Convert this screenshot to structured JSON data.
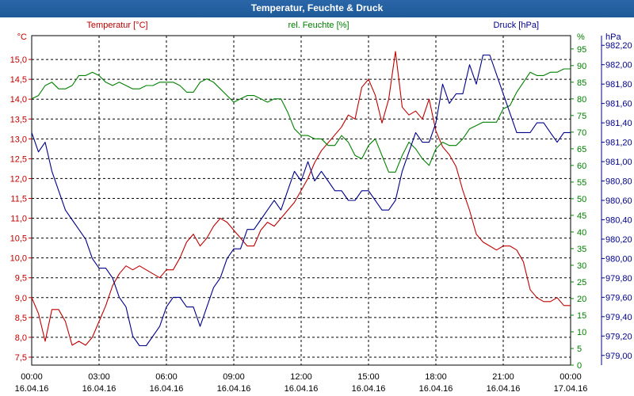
{
  "window": {
    "title": "Temperatur, Feuchte & Druck"
  },
  "colors": {
    "temperature": "#c00000",
    "humidity": "#008000",
    "pressure": "#00008b",
    "titlebar": "#1f5a99"
  },
  "chart_data": {
    "type": "line",
    "title": "Temperatur, Feuchte & Druck",
    "grid": true,
    "x_ticks": [
      {
        "time": "00:00",
        "date": "16.04.16"
      },
      {
        "time": "03:00",
        "date": "16.04.16"
      },
      {
        "time": "06:00",
        "date": "16.04.16"
      },
      {
        "time": "09:00",
        "date": "16.04.16"
      },
      {
        "time": "12:00",
        "date": "16.04.16"
      },
      {
        "time": "15:00",
        "date": "16.04.16"
      },
      {
        "time": "18:00",
        "date": "16.04.16"
      },
      {
        "time": "21:00",
        "date": "16.04.16"
      },
      {
        "time": "00:00",
        "date": "17.04.16"
      }
    ],
    "x_range_hours": [
      0,
      24
    ],
    "axes": {
      "temperature": {
        "label": "Temperatur [°C]",
        "unit": "°C",
        "range": [
          7.3,
          15.6
        ],
        "ticks": [
          "7,5",
          "8,0",
          "8,5",
          "9,0",
          "9,5",
          "10,0",
          "10,5",
          "11,0",
          "11,5",
          "12,0",
          "12,5",
          "13,0",
          "13,5",
          "14,0",
          "14,5",
          "15,0"
        ]
      },
      "humidity": {
        "label": "rel. Feuchte [%]",
        "unit": "%",
        "range": [
          0,
          99
        ],
        "ticks": [
          "0",
          "5",
          "10",
          "15",
          "20",
          "25",
          "30",
          "35",
          "40",
          "45",
          "50",
          "55",
          "60",
          "65",
          "70",
          "75",
          "80",
          "85",
          "90",
          "95"
        ]
      },
      "pressure": {
        "label": "Druck [hPa]",
        "unit": "hPa",
        "range": [
          978.9,
          982.3
        ],
        "ticks": [
          "979,00",
          "979,20",
          "979,40",
          "979,60",
          "979,80",
          "980,00",
          "980,20",
          "980,40",
          "980,60",
          "980,80",
          "981,00",
          "981,20",
          "981,40",
          "981,60",
          "981,80",
          "982,00",
          "982,20"
        ]
      }
    },
    "series": [
      {
        "name": "Temperatur [°C]",
        "axis": "temperature",
        "x": [
          0,
          0.3,
          0.6,
          0.9,
          1.2,
          1.5,
          1.8,
          2.1,
          2.4,
          2.7,
          3.0,
          3.3,
          3.6,
          3.9,
          4.2,
          4.5,
          4.8,
          5.1,
          5.4,
          5.7,
          6.0,
          6.3,
          6.6,
          6.9,
          7.2,
          7.5,
          7.8,
          8.1,
          8.4,
          8.7,
          9.0,
          9.3,
          9.6,
          9.9,
          10.2,
          10.5,
          10.8,
          11.1,
          11.4,
          11.7,
          12.0,
          12.3,
          12.6,
          12.9,
          13.2,
          13.5,
          13.8,
          14.1,
          14.4,
          14.7,
          15.0,
          15.3,
          15.6,
          15.9,
          16.2,
          16.5,
          16.8,
          17.1,
          17.4,
          17.7,
          18.0,
          18.3,
          18.6,
          18.9,
          19.2,
          19.5,
          19.8,
          20.1,
          20.4,
          20.7,
          21.0,
          21.3,
          21.6,
          21.9,
          22.2,
          22.5,
          22.8,
          23.1,
          23.4,
          23.7,
          24.0
        ],
        "values": [
          9.0,
          8.6,
          7.9,
          8.7,
          8.7,
          8.4,
          7.8,
          7.9,
          7.8,
          8.0,
          8.4,
          8.8,
          9.3,
          9.6,
          9.8,
          9.7,
          9.8,
          9.7,
          9.6,
          9.5,
          9.7,
          9.7,
          10.0,
          10.4,
          10.6,
          10.3,
          10.5,
          10.8,
          11.0,
          10.9,
          10.7,
          10.5,
          10.3,
          10.3,
          10.7,
          10.9,
          10.8,
          11.0,
          11.2,
          11.4,
          11.7,
          12.0,
          12.4,
          12.7,
          12.9,
          13.1,
          13.3,
          13.6,
          13.5,
          14.3,
          14.5,
          14.1,
          13.4,
          14.0,
          15.2,
          13.8,
          13.6,
          13.7,
          13.5,
          14.0,
          13.2,
          12.8,
          12.6,
          12.3,
          11.7,
          11.2,
          10.6,
          10.4,
          10.3,
          10.2,
          10.3,
          10.3,
          10.2,
          9.9,
          9.2,
          9.0,
          8.9,
          8.9,
          9.0,
          8.8,
          8.8
        ]
      },
      {
        "name": "rel. Feuchte [%]",
        "axis": "humidity",
        "x": [
          0,
          0.3,
          0.6,
          0.9,
          1.2,
          1.5,
          1.8,
          2.1,
          2.4,
          2.7,
          3.0,
          3.3,
          3.6,
          3.9,
          4.2,
          4.5,
          4.8,
          5.1,
          5.4,
          5.7,
          6.0,
          6.3,
          6.6,
          6.9,
          7.2,
          7.5,
          7.8,
          8.1,
          8.4,
          8.7,
          9.0,
          9.3,
          9.6,
          9.9,
          10.2,
          10.5,
          10.8,
          11.1,
          11.4,
          11.7,
          12.0,
          12.3,
          12.6,
          12.9,
          13.2,
          13.5,
          13.8,
          14.1,
          14.4,
          14.7,
          15.0,
          15.3,
          15.6,
          15.9,
          16.2,
          16.5,
          16.8,
          17.1,
          17.4,
          17.7,
          18.0,
          18.3,
          18.6,
          18.9,
          19.2,
          19.5,
          19.8,
          20.1,
          20.4,
          20.7,
          21.0,
          21.3,
          21.6,
          21.9,
          22.2,
          22.5,
          22.8,
          23.1,
          23.4,
          23.7,
          24.0
        ],
        "values": [
          80,
          81,
          84,
          85,
          83,
          83,
          84,
          87,
          87,
          88,
          87,
          85,
          84,
          85,
          84,
          83,
          83,
          84,
          84,
          85,
          85,
          85,
          84,
          82,
          82,
          85,
          86,
          85,
          83,
          81,
          79,
          80,
          81,
          81,
          80,
          79,
          80,
          80,
          76,
          71,
          69,
          69,
          68,
          68,
          66,
          66,
          69,
          67,
          63,
          62,
          66,
          68,
          63,
          58,
          58,
          63,
          67,
          65,
          62,
          60,
          65,
          67,
          66,
          66,
          68,
          71,
          72,
          73,
          73,
          73,
          77,
          78,
          82,
          85,
          88,
          87,
          87,
          88,
          88,
          89,
          89
        ]
      },
      {
        "name": "Druck [hPa]",
        "axis": "pressure",
        "x": [
          0,
          0.3,
          0.6,
          0.9,
          1.2,
          1.5,
          1.8,
          2.1,
          2.4,
          2.7,
          3.0,
          3.3,
          3.6,
          3.9,
          4.2,
          4.5,
          4.8,
          5.1,
          5.4,
          5.7,
          6.0,
          6.3,
          6.6,
          6.9,
          7.2,
          7.5,
          7.8,
          8.1,
          8.4,
          8.7,
          9.0,
          9.3,
          9.6,
          9.9,
          10.2,
          10.5,
          10.8,
          11.1,
          11.4,
          11.7,
          12.0,
          12.3,
          12.6,
          12.9,
          13.2,
          13.5,
          13.8,
          14.1,
          14.4,
          14.7,
          15.0,
          15.3,
          15.6,
          15.9,
          16.2,
          16.5,
          16.8,
          17.1,
          17.4,
          17.7,
          18.0,
          18.3,
          18.6,
          18.9,
          19.2,
          19.5,
          19.8,
          20.1,
          20.4,
          20.7,
          21.0,
          21.3,
          21.6,
          21.9,
          22.2,
          22.5,
          22.8,
          23.1,
          23.4,
          23.7,
          24.0
        ],
        "values": [
          981.3,
          981.1,
          981.2,
          980.9,
          980.7,
          980.5,
          980.4,
          980.3,
          980.2,
          980.0,
          979.9,
          979.9,
          979.8,
          979.6,
          979.5,
          979.2,
          979.1,
          979.1,
          979.2,
          979.3,
          979.5,
          979.6,
          979.6,
          979.5,
          979.5,
          979.3,
          979.5,
          979.7,
          979.8,
          980.0,
          980.1,
          980.1,
          980.3,
          980.3,
          980.4,
          980.5,
          980.6,
          980.5,
          980.7,
          980.9,
          980.8,
          981.0,
          980.8,
          980.9,
          980.8,
          980.7,
          980.7,
          980.6,
          980.6,
          980.7,
          980.7,
          980.6,
          980.5,
          980.5,
          980.6,
          980.9,
          981.1,
          981.3,
          981.2,
          981.2,
          981.4,
          981.8,
          981.6,
          981.7,
          981.7,
          982.0,
          981.8,
          982.1,
          982.1,
          981.9,
          981.7,
          981.5,
          981.3,
          981.3,
          981.3,
          981.4,
          981.4,
          981.3,
          981.2,
          981.3,
          981.3
        ]
      }
    ]
  }
}
